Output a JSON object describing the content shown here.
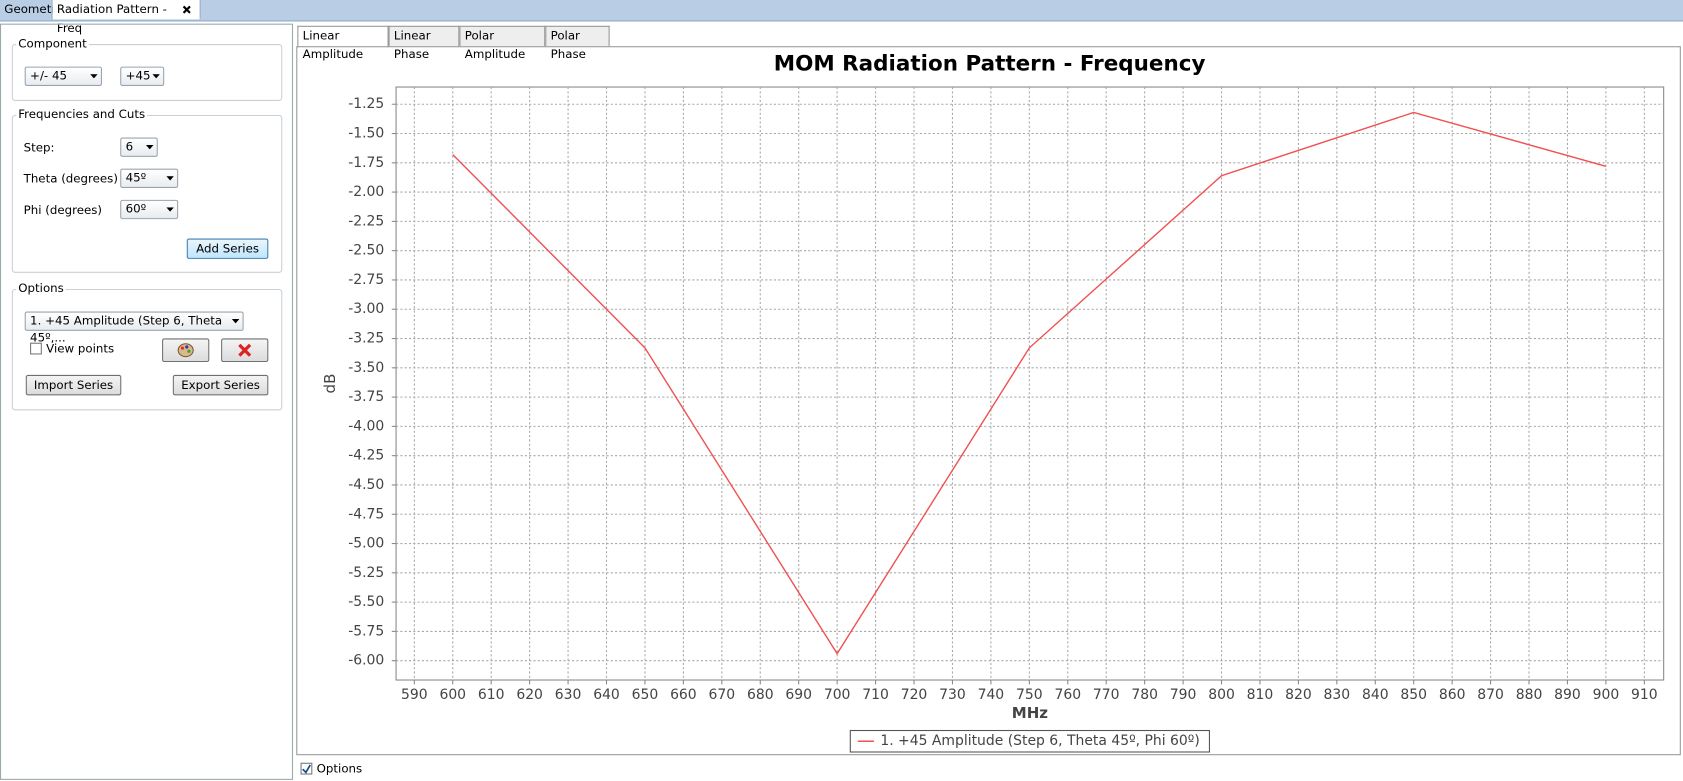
{
  "ui": {
    "top_tabs": [
      "Geometry",
      "Radiation Pattern - Freq"
    ],
    "component": {
      "title": "Component",
      "combo1": "+/- 45",
      "combo2": "+45"
    },
    "freq": {
      "title": "Frequencies and Cuts",
      "step_label": "Step:",
      "step_value": "6",
      "theta_label": "Theta (degrees)",
      "theta_value": "45º",
      "phi_label": "Phi (degrees)",
      "phi_value": "60º",
      "add_button": "Add Series"
    },
    "options": {
      "title": "Options",
      "series_combo": "1. +45 Amplitude (Step 6, Theta 45º,...",
      "view_points": "View points",
      "import_button": "Import Series",
      "export_button": "Export Series"
    },
    "chart_tabs": [
      "Linear Amplitude",
      "Linear Phase",
      "Polar Amplitude",
      "Polar Phase"
    ],
    "bottom_options": "Options"
  },
  "chart_data": {
    "type": "line",
    "title": "MOM Radiation Pattern - Frequency",
    "x_label": "MHz",
    "y_label": "dB",
    "x": [
      600,
      650,
      700,
      750,
      800,
      850,
      900
    ],
    "series": [
      {
        "name": "1. +45 Amplitude (Step 6, Theta 45º, Phi 60º)",
        "color": "#f05050",
        "values": [
          -1.68,
          -3.33,
          -5.94,
          -3.33,
          -1.86,
          -1.32,
          -1.78
        ]
      }
    ],
    "xlim": [
      585.25,
      915.03
    ],
    "xticks": [
      590,
      600,
      610,
      620,
      630,
      640,
      650,
      660,
      670,
      680,
      690,
      700,
      710,
      720,
      730,
      740,
      750,
      760,
      770,
      780,
      790,
      800,
      810,
      820,
      830,
      840,
      850,
      860,
      870,
      880,
      890,
      900,
      910
    ],
    "ylim": [
      -6.165,
      -1.103
    ],
    "yticks": [
      {
        "value": -1.25,
        "label": "-1.25"
      },
      {
        "value": -1.5,
        "label": "-1.50"
      },
      {
        "value": -1.75,
        "label": "-1.75"
      },
      {
        "value": -2,
        "label": "-2.00"
      },
      {
        "value": -2.25,
        "label": "-2.25"
      },
      {
        "value": -2.5,
        "label": "-2.50"
      },
      {
        "value": -2.75,
        "label": "-2.75"
      },
      {
        "value": -3,
        "label": "-3.00"
      },
      {
        "value": -3.25,
        "label": "-3.25"
      },
      {
        "value": -3.5,
        "label": "-3.50"
      },
      {
        "value": -3.75,
        "label": "-3.75"
      },
      {
        "value": -4,
        "label": "-4.00"
      },
      {
        "value": -4.25,
        "label": "-4.25"
      },
      {
        "value": -4.5,
        "label": "-4.50"
      },
      {
        "value": -4.75,
        "label": "-4.75"
      },
      {
        "value": -5,
        "label": "-5.00"
      },
      {
        "value": -5.25,
        "label": "-5.25"
      },
      {
        "value": -5.5,
        "label": "-5.50"
      },
      {
        "value": -5.75,
        "label": "-5.75"
      },
      {
        "value": -6,
        "label": "-6.00"
      }
    ],
    "grid": true,
    "legend": "bottom"
  }
}
